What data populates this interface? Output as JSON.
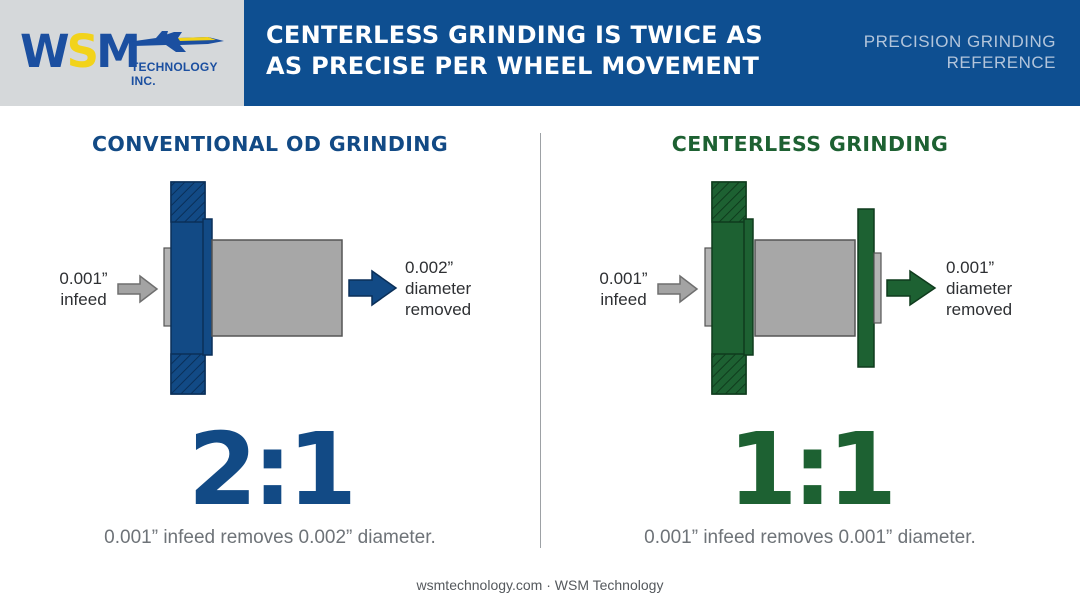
{
  "header": {
    "logo": {
      "letters": [
        "W",
        "S",
        "M"
      ],
      "company": "TECHNOLOGY INC."
    },
    "title_lines": [
      "CENTERLESS GRINDING IS TWICE AS",
      "AS PRECISE PER WHEEL MOVEMENT"
    ],
    "reference_lines": [
      "PRECISION GRINDING",
      "REFERENCE"
    ]
  },
  "left_panel": {
    "title": "CONVENTIONAL OD GRINDING",
    "infeed_lines": [
      "0.001”",
      "infeed"
    ],
    "output_lines": [
      "0.002”",
      "diameter",
      "removed"
    ],
    "ratio": "2:1",
    "caption": "0.001” infeed removes 0.002” diameter.",
    "color": "#124a85"
  },
  "right_panel": {
    "title": "CENTERLESS GRINDING",
    "infeed_lines": [
      "0.001”",
      "infeed"
    ],
    "output_lines": [
      "0.001”",
      "diameter",
      "removed"
    ],
    "ratio": "1:1",
    "caption": "0.001” infeed removes 0.001” diameter.",
    "color": "#1d6132"
  },
  "footer": {
    "text": "wsmtechnology.com · WSM Technology"
  }
}
